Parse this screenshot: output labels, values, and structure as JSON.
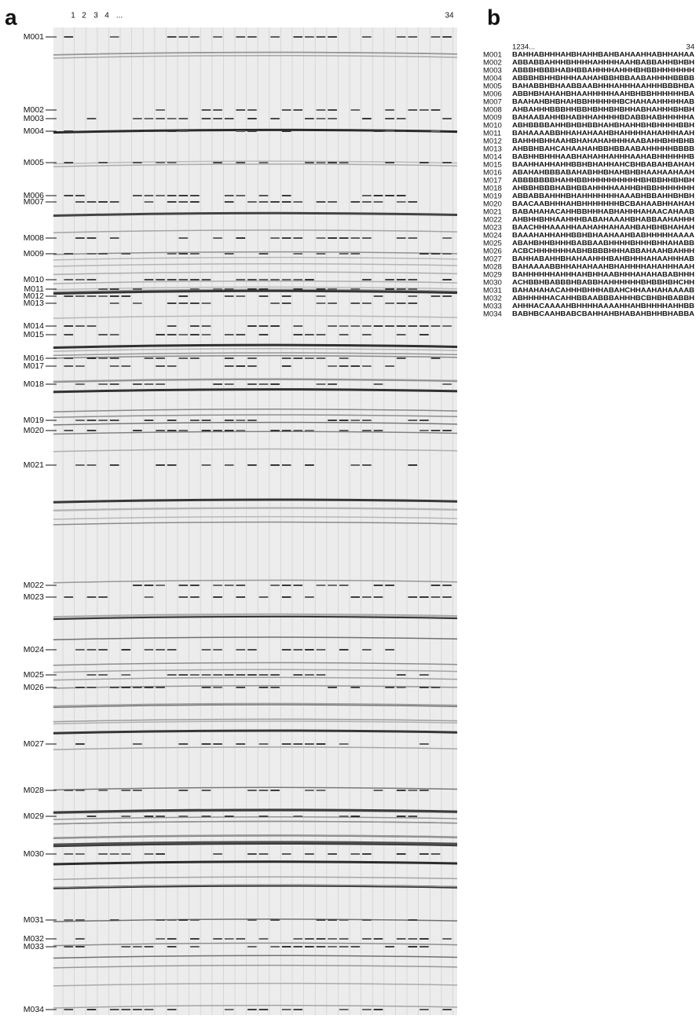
{
  "panel_a": {
    "label": "a",
    "lane_labels": [
      "1",
      "2",
      "3",
      "4",
      "...",
      "34"
    ],
    "markers": [
      "M001",
      "M002",
      "M003",
      "M004",
      "M005",
      "M006",
      "M007",
      "M008",
      "M009",
      "M010",
      "M011",
      "M012",
      "M013",
      "M014",
      "M015",
      "M016",
      "M017",
      "M018",
      "M019",
      "M020",
      "M021",
      "M022",
      "M023",
      "M024",
      "M025",
      "M026",
      "M027",
      "M028",
      "M029",
      "M030",
      "M031",
      "M032",
      "M033",
      "M034"
    ]
  },
  "panel_b": {
    "label": "b",
    "header_left": "1234...",
    "header_right": "34",
    "rows": [
      {
        "marker": "M001",
        "genotype": "BAHHABHHHAHBHAHHBAHBAHAAHHABHHAHAA"
      },
      {
        "marker": "M002",
        "genotype": "ABBABBAHHHBHHHHAHHHHAAHBABBAHHBHBH"
      },
      {
        "marker": "M003",
        "genotype": "ABBBHBBBHABHBBAHHHHAHHHBHBBHHHHHHH"
      },
      {
        "marker": "M004",
        "genotype": "ABBBHBHHBHHHAAHAHBBHBBAABAHHHHBBBB"
      },
      {
        "marker": "M005",
        "genotype": "BAHABBHBHAABBAABHHHAHHHAAHHHBBBHBA"
      },
      {
        "marker": "M006",
        "genotype": "ABBHBHAHAHBHAAHHHHHAAHBHBBHHHHHHBA"
      },
      {
        "marker": "M007",
        "genotype": "BAAHAHBHBHAHBBHHHHHHBCHAHAAHHHHHAB"
      },
      {
        "marker": "M008",
        "genotype": "AHBAHHHBBBHHBBHBHHBHBHHABHAHHHBHBH"
      },
      {
        "marker": "M009",
        "genotype": "BAHAABAHHBHABHHAHHHHBDABBHABHHHHHA"
      },
      {
        "marker": "M010",
        "genotype": "ABHBBBBAHHBHBHBBHAHBHAHHBHBHHHHBBH"
      },
      {
        "marker": "M011",
        "genotype": "BAHAAAABBHHAHAHAAHBHAHHHHAHAHHHAAH"
      },
      {
        "marker": "M012",
        "genotype": "BAHHHBHHAAHBHAHAHAHHHHAABAHHBHHBHB"
      },
      {
        "marker": "M013",
        "genotype": "AHBBHBAHCAHAAHAHBBHBBAABAHHHHHBBBB"
      },
      {
        "marker": "M014",
        "genotype": "BABHHBHHHAABHAHAHHAHHHAAHABHHHHHHB"
      },
      {
        "marker": "M015",
        "genotype": "BAAHHAHHAHHBBHBHAHHAHCBHBABAHBAHAH"
      },
      {
        "marker": "M016",
        "genotype": "ABAHAHBBBABAHABHHBHAHBHBHAAHAAHAAH"
      },
      {
        "marker": "M017",
        "genotype": "ABBBBBBBHAHHBBHHHHHHHHHHBHBBHHBHBH"
      },
      {
        "marker": "M018",
        "genotype": "AHBBHBBBHABHBBAHHHHAAHHBHBBHHHHHHH"
      },
      {
        "marker": "M019",
        "genotype": "ABBABBAHHHBHAHHHHHHHAAABHBBAHHBHBH"
      },
      {
        "marker": "M020",
        "genotype": "BAACAABHHHAHBHHHHHHHBCBAHAABHHAHAH"
      },
      {
        "marker": "M021",
        "genotype": "BABAHAHACAHHBBHHHABHAHHHAHAACAHAAB"
      },
      {
        "marker": "M022",
        "genotype": "AHBHHBHHAAHHHBABAHAAAHBHABBAAHAHHH"
      },
      {
        "marker": "M023",
        "genotype": "BAACHHHAAAHHAAHAHHAHAAHBAHBHBHAHAH"
      },
      {
        "marker": "M024",
        "genotype": "BAAAHAHHAHHBBHBHAAHAAHBABHHHHHAAAA"
      },
      {
        "marker": "M025",
        "genotype": "ABAHBHHBHHHBABBAABHHHHBHHHBHHAHABB"
      },
      {
        "marker": "M026",
        "genotype": "ACBCHHHHHHHABHBBBBHHHABBAHAAHBAHHH"
      },
      {
        "marker": "M027",
        "genotype": "BAHHABAHHBHAHAAHHHBAHBHHHAHAAHHHAB"
      },
      {
        "marker": "M028",
        "genotype": "BAHAAAABBHHAHAHAAHBHAHHHHAHAHHHAAH"
      },
      {
        "marker": "M029",
        "genotype": "BAHHHHHHAHHHAHBHHAABHHHAHAHABABHHH"
      },
      {
        "marker": "M030",
        "genotype": "ACHBBHBABBBHBABBHAHHHHHHBHBBHBHCHH"
      },
      {
        "marker": "M031",
        "genotype": "BAHAHAHACAHHHBHHHABAHCHHAAHAHAAAAB"
      },
      {
        "marker": "M032",
        "genotype": "ABHHHHHACAHHBBAABBBAHHHBCBHBHBABBH"
      },
      {
        "marker": "M033",
        "genotype": "AHHHACAAAAHBHHHHAAAAHHAHBHHHHAHHBB"
      },
      {
        "marker": "M034",
        "genotype": "BABHBCAAHBABCBAHHAHBHABAHBHHBHABBA"
      }
    ]
  }
}
